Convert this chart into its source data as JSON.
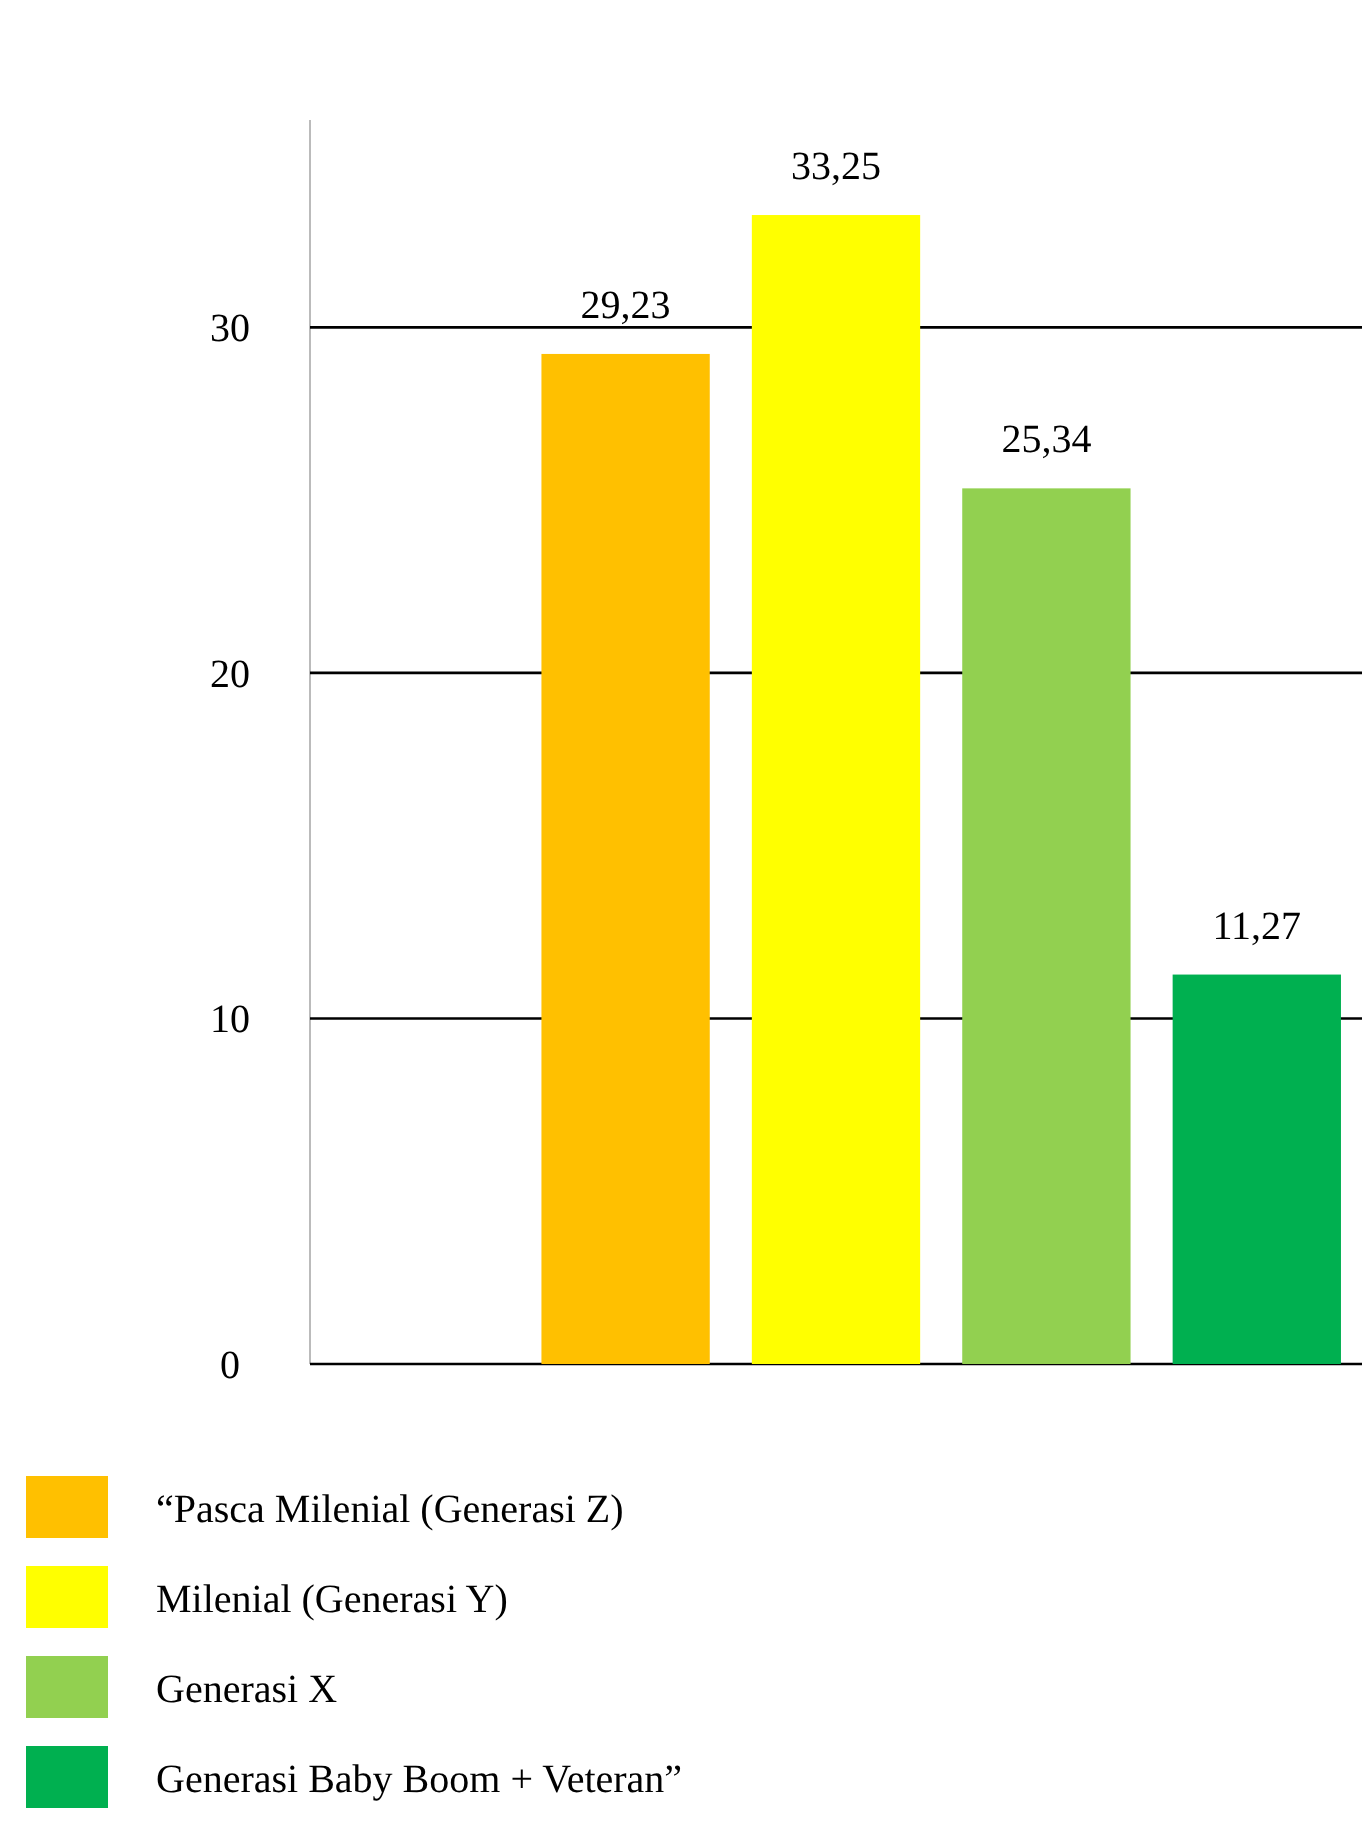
{
  "chart_data": {
    "type": "bar",
    "categories": [
      null,
      null,
      null,
      null,
      null
    ],
    "series": [
      {
        "name": "“Pasca Milenial (Generasi Z)",
        "color": "#ffc000",
        "values": [
          null,
          29.23,
          null,
          null,
          null
        ],
        "value_labels": [
          null,
          "29,23",
          null,
          null,
          null
        ]
      },
      {
        "name": "Milenial (Generasi Y)",
        "color": "#ffff00",
        "values": [
          null,
          null,
          33.25,
          null,
          null
        ],
        "value_labels": [
          null,
          null,
          "33,25",
          null,
          null
        ]
      },
      {
        "name": "Generasi X",
        "color": "#92d050",
        "values": [
          null,
          null,
          null,
          25.34,
          null
        ],
        "value_labels": [
          null,
          null,
          null,
          "25,34",
          null
        ]
      },
      {
        "name": "Generasi Baby Boom + Veteran”",
        "color": "#00b050",
        "values": [
          null,
          null,
          null,
          null,
          11.27
        ],
        "value_labels": [
          null,
          null,
          null,
          null,
          "11,27"
        ]
      }
    ],
    "ylim": [
      0,
      36
    ],
    "yticks": [
      0,
      10,
      20,
      30
    ],
    "grid": "y",
    "legend": "bottom",
    "tick_labels": "y"
  }
}
